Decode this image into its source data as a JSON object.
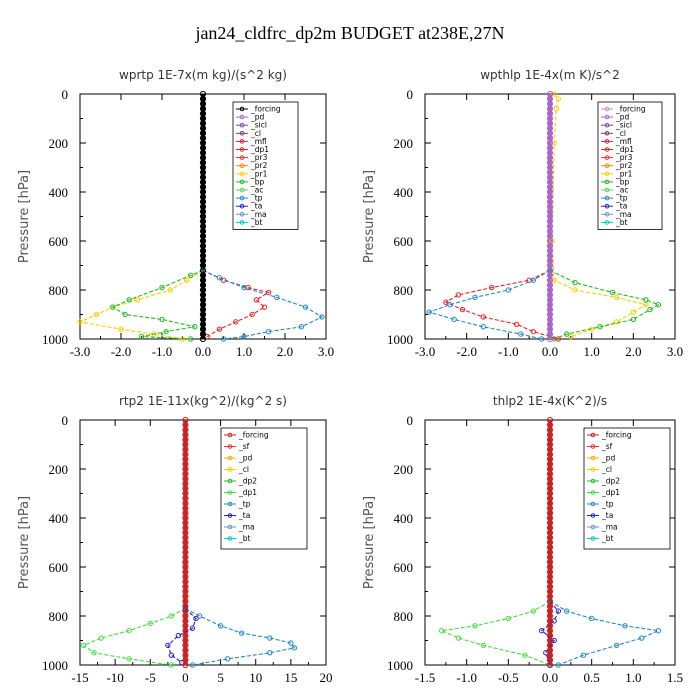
{
  "figure_title": "jan24_cldfrc_dp2m  BUDGET at238E,27N",
  "chart_data": [
    {
      "type": "line",
      "title": "wprtp  1E-7x(m kg)/(s^2 kg)",
      "ylabel": "Pressure [hPa]",
      "xticks": [
        "-3.0",
        "-2.0",
        "-1.0",
        "0.0",
        "1.0",
        "2.0",
        "3.0"
      ],
      "xlim": [
        -3.0,
        3.0
      ],
      "yticks": [
        "0",
        "200",
        "400",
        "600",
        "800",
        "1000"
      ],
      "ylim": [
        1000,
        0
      ],
      "legend": [
        "_forcing",
        "_pd",
        "_sicl",
        "_cl",
        "_mfl",
        "_dp1",
        "_pr3",
        "_pr2",
        "_pr1",
        "_bp",
        "_ac",
        "_tp",
        "_ta",
        "_ma",
        "_bt"
      ],
      "series": [
        {
          "name": "_forcing",
          "color": "#000000",
          "points": [
            [
              0,
              0
            ],
            [
              0,
              1000
            ]
          ]
        },
        {
          "name": "_pr1",
          "color": "#ffcc00",
          "points": [
            [
              0,
              720
            ],
            [
              -0.4,
              760
            ],
            [
              -0.8,
              800
            ],
            [
              -1.6,
              840
            ],
            [
              -2.2,
              870
            ],
            [
              -2.6,
              900
            ],
            [
              -3.0,
              930
            ],
            [
              -2.0,
              960
            ],
            [
              -1.2,
              980
            ],
            [
              -0.5,
              1000
            ]
          ]
        },
        {
          "name": "_ac",
          "color": "#22bb22",
          "points": [
            [
              0,
              720
            ],
            [
              -0.3,
              740
            ],
            [
              -1.0,
              790
            ],
            [
              -1.8,
              840
            ],
            [
              -2.2,
              870
            ],
            [
              -1.9,
              900
            ],
            [
              -1.0,
              920
            ],
            [
              -0.2,
              950
            ],
            [
              -0.9,
              970
            ],
            [
              -1.5,
              990
            ],
            [
              -0.3,
              1000
            ]
          ]
        },
        {
          "name": "_dp1",
          "color": "#ee2222",
          "points": [
            [
              0,
              720
            ],
            [
              0.5,
              760
            ],
            [
              1.1,
              790
            ],
            [
              1.6,
              810
            ],
            [
              1.3,
              840
            ],
            [
              1.5,
              870
            ],
            [
              1.2,
              900
            ],
            [
              0.8,
              930
            ],
            [
              0.4,
              960
            ],
            [
              0.1,
              990
            ]
          ]
        },
        {
          "name": "_tp",
          "color": "#2288cc",
          "points": [
            [
              0,
              720
            ],
            [
              0.4,
              750
            ],
            [
              1.0,
              790
            ],
            [
              1.8,
              830
            ],
            [
              2.5,
              870
            ],
            [
              2.9,
              910
            ],
            [
              2.4,
              950
            ],
            [
              1.6,
              970
            ],
            [
              1.0,
              990
            ],
            [
              0.5,
              1000
            ]
          ]
        }
      ]
    },
    {
      "type": "line",
      "title": "wpthlp  1E-4x(m K)/s^2",
      "ylabel": "Pressure [hPa]",
      "xticks": [
        "-3.0",
        "-2.0",
        "-1.0",
        "0.0",
        "1.0",
        "2.0",
        "3.0"
      ],
      "xlim": [
        -3.0,
        3.0
      ],
      "yticks": [
        "0",
        "200",
        "400",
        "600",
        "800",
        "1000"
      ],
      "ylim": [
        1000,
        0
      ],
      "legend": [
        "_forcing",
        "_pd",
        "_sicl",
        "_cl",
        "_mfl",
        "_dp1",
        "_pr3",
        "_pr2",
        "_pr1",
        "_bp",
        "_ac",
        "_tp",
        "_ta",
        "_ma",
        "_bt"
      ],
      "series": [
        {
          "name": "_forcing",
          "color": "#aa66cc",
          "points": [
            [
              0,
              0
            ],
            [
              0,
              1000
            ]
          ]
        },
        {
          "name": "_pr1",
          "color": "#ffcc00",
          "points": [
            [
              0.1,
              0
            ],
            [
              0.2,
              20
            ],
            [
              0.15,
              60
            ],
            [
              0.1,
              200
            ],
            [
              0.05,
              600
            ],
            [
              0.1,
              760
            ],
            [
              0.6,
              800
            ],
            [
              1.6,
              830
            ],
            [
              2.3,
              860
            ],
            [
              2.0,
              890
            ],
            [
              1.6,
              930
            ],
            [
              1.0,
              960
            ],
            [
              0.5,
              990
            ]
          ]
        },
        {
          "name": "_ac",
          "color": "#22bb22",
          "points": [
            [
              0,
              720
            ],
            [
              0.6,
              770
            ],
            [
              1.5,
              810
            ],
            [
              2.3,
              840
            ],
            [
              2.6,
              860
            ],
            [
              2.4,
              880
            ],
            [
              2.0,
              920
            ],
            [
              1.2,
              950
            ],
            [
              0.4,
              980
            ],
            [
              0.1,
              1000
            ]
          ]
        },
        {
          "name": "_dp1",
          "color": "#ee2222",
          "points": [
            [
              0,
              720
            ],
            [
              -0.5,
              760
            ],
            [
              -1.4,
              790
            ],
            [
              -2.2,
              820
            ],
            [
              -2.5,
              850
            ],
            [
              -2.1,
              880
            ],
            [
              -1.6,
              910
            ],
            [
              -0.8,
              940
            ],
            [
              -0.4,
              970
            ],
            [
              0.2,
              1000
            ]
          ]
        },
        {
          "name": "_tp",
          "color": "#2288cc",
          "points": [
            [
              0,
              720
            ],
            [
              -0.4,
              760
            ],
            [
              -1.0,
              800
            ],
            [
              -1.8,
              830
            ],
            [
              -2.4,
              860
            ],
            [
              -2.9,
              890
            ],
            [
              -2.3,
              920
            ],
            [
              -1.6,
              950
            ],
            [
              -0.7,
              980
            ],
            [
              -0.2,
              1000
            ]
          ]
        }
      ]
    },
    {
      "type": "line",
      "title": "rtp2  1E-11x(kg^2)/(kg^2 s)",
      "ylabel": "Pressure [hPa]",
      "xticks": [
        "-15",
        "-10",
        "-5",
        "0",
        "5",
        "10",
        "15",
        "20"
      ],
      "xlim": [
        -15,
        20
      ],
      "yticks": [
        "0",
        "200",
        "400",
        "600",
        "800",
        "1000"
      ],
      "ylim": [
        1000,
        0
      ],
      "legend": [
        "_forcing",
        "_sf",
        "_pd",
        "_cl",
        "_dp2",
        "_dp1",
        "_tp",
        "_ta",
        "_ma",
        "_bt"
      ],
      "series": [
        {
          "name": "_forcing",
          "color": "#cc2222",
          "points": [
            [
              0,
              0
            ],
            [
              0,
              1000
            ]
          ]
        },
        {
          "name": "_dp1",
          "color": "#44dd44",
          "points": [
            [
              0,
              770
            ],
            [
              -2,
              800
            ],
            [
              -5,
              830
            ],
            [
              -8,
              860
            ],
            [
              -12,
              890
            ],
            [
              -14.5,
              920
            ],
            [
              -13,
              950
            ],
            [
              -8,
              975
            ],
            [
              -2,
              1000
            ]
          ]
        },
        {
          "name": "_tp",
          "color": "#2288cc",
          "points": [
            [
              0,
              770
            ],
            [
              2,
              800
            ],
            [
              5,
              840
            ],
            [
              8,
              870
            ],
            [
              12,
              890
            ],
            [
              15,
              910
            ],
            [
              15.5,
              930
            ],
            [
              12,
              950
            ],
            [
              6,
              975
            ],
            [
              1,
              1000
            ]
          ]
        },
        {
          "name": "_ta",
          "color": "#2222cc",
          "points": [
            [
              0,
              770
            ],
            [
              1.5,
              810
            ],
            [
              1,
              850
            ],
            [
              -1,
              880
            ],
            [
              -2.5,
              920
            ],
            [
              -2,
              960
            ],
            [
              -0.5,
              990
            ]
          ]
        }
      ]
    },
    {
      "type": "line",
      "title": "thlp2  1E-4x(K^2)/s",
      "ylabel": "Pressure [hPa]",
      "xticks": [
        "-1.5",
        "-1.0",
        "-0.5",
        "0.0",
        "0.5",
        "1.0",
        "1.5"
      ],
      "xlim": [
        -1.5,
        1.5
      ],
      "yticks": [
        "0",
        "200",
        "400",
        "600",
        "800",
        "1000"
      ],
      "ylim": [
        1000,
        0
      ],
      "legend": [
        "_forcing",
        "_sf",
        "_pd",
        "_cl",
        "_dp2",
        "_dp1",
        "_tp",
        "_ta",
        "_ma",
        "_bt"
      ],
      "series": [
        {
          "name": "_forcing",
          "color": "#cc2222",
          "points": [
            [
              0,
              0
            ],
            [
              0,
              1000
            ]
          ]
        },
        {
          "name": "_dp1",
          "color": "#44dd44",
          "points": [
            [
              0,
              740
            ],
            [
              -0.2,
              780
            ],
            [
              -0.5,
              810
            ],
            [
              -0.9,
              840
            ],
            [
              -1.3,
              860
            ],
            [
              -1.1,
              890
            ],
            [
              -0.8,
              920
            ],
            [
              -0.3,
              960
            ],
            [
              0,
              1000
            ]
          ]
        },
        {
          "name": "_tp",
          "color": "#2288cc",
          "points": [
            [
              0,
              740
            ],
            [
              0.2,
              780
            ],
            [
              0.5,
              810
            ],
            [
              0.9,
              840
            ],
            [
              1.3,
              860
            ],
            [
              1.1,
              890
            ],
            [
              0.8,
              920
            ],
            [
              0.4,
              960
            ],
            [
              0.1,
              1000
            ]
          ]
        },
        {
          "name": "_ta",
          "color": "#2222cc",
          "points": [
            [
              0,
              740
            ],
            [
              0.1,
              780
            ],
            [
              0.05,
              820
            ],
            [
              -0.1,
              860
            ],
            [
              0.05,
              900
            ],
            [
              -0.05,
              950
            ],
            [
              0,
              1000
            ]
          ]
        }
      ]
    }
  ]
}
